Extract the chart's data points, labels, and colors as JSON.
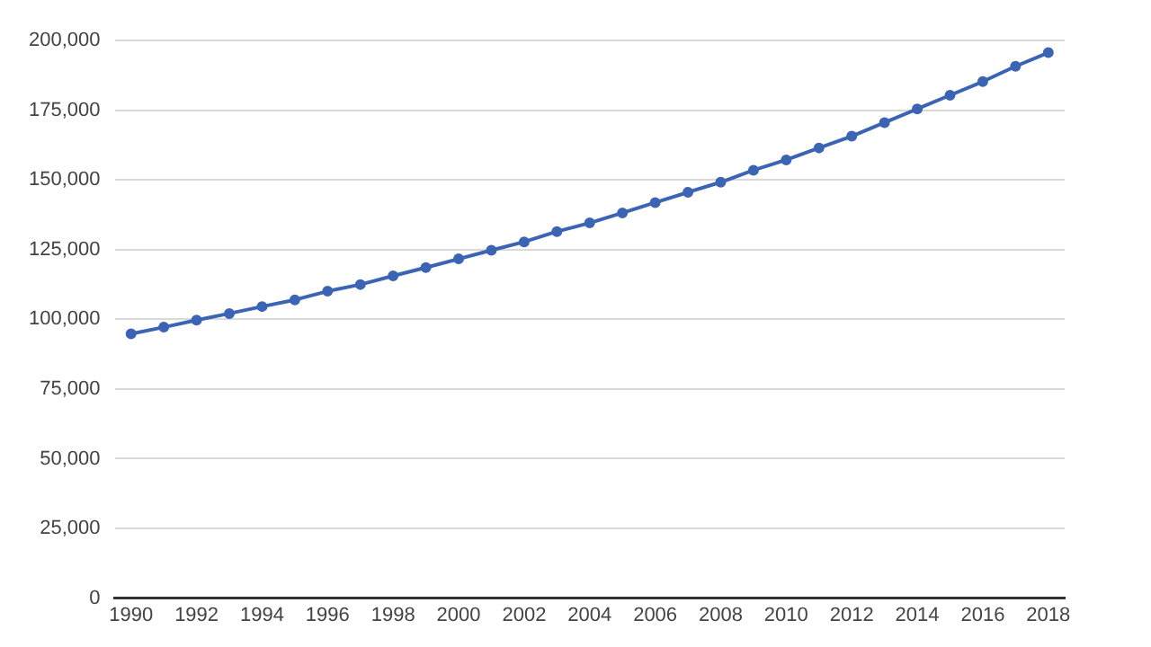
{
  "chart_data": {
    "type": "line",
    "x": [
      1990,
      1991,
      1992,
      1993,
      1994,
      1995,
      1996,
      1997,
      1998,
      1999,
      2000,
      2001,
      2002,
      2003,
      2004,
      2005,
      2006,
      2007,
      2008,
      2009,
      2010,
      2011,
      2012,
      2013,
      2014,
      2015,
      2016,
      2017,
      2018
    ],
    "series": [
      {
        "color": "#3c64b4",
        "values": [
          94800,
          97200,
          99700,
          102100,
          104600,
          107000,
          110100,
          112500,
          115600,
          118600,
          121700,
          124800,
          127800,
          131500,
          134600,
          138200,
          141900,
          145600,
          149200,
          153500,
          157200,
          161500,
          165700,
          170600,
          175500,
          180400,
          185300,
          190800,
          195700
        ]
      }
    ],
    "xlim": [
      1989.5,
      2018.5
    ],
    "xticks": [
      1990,
      1992,
      1994,
      1996,
      1998,
      2000,
      2002,
      2004,
      2006,
      2008,
      2010,
      2012,
      2014,
      2016,
      2018
    ],
    "ylim": [
      0,
      200000
    ],
    "yticks": [
      {
        "value": 0,
        "label": "0"
      },
      {
        "value": 25000,
        "label": "25,000"
      },
      {
        "value": 50000,
        "label": "50,000"
      },
      {
        "value": 75000,
        "label": "75,000"
      },
      {
        "value": 100000,
        "label": "100,000"
      },
      {
        "value": 125000,
        "label": "125,000"
      },
      {
        "value": 150000,
        "label": "150,000"
      },
      {
        "value": 175000,
        "label": "175,000"
      },
      {
        "value": 200000,
        "label": "200,000"
      }
    ],
    "grid": "y",
    "legend": false,
    "marker": "circle",
    "line_style": "solid"
  }
}
